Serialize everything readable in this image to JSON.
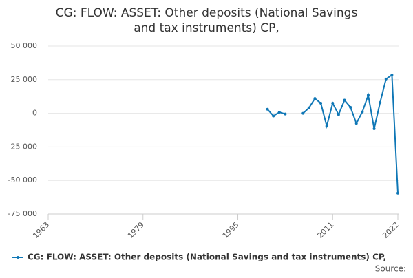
{
  "chart_data": {
    "type": "line",
    "title": "CG: FLOW: ASSET: Other deposits (National Savings and tax instruments) CP,",
    "x": [
      2000,
      2001,
      2002,
      2003,
      2004,
      2005,
      2006,
      2007,
      2008,
      2009,
      2010,
      2011,
      2012,
      2013,
      2014,
      2015,
      2016,
      2017,
      2018,
      2019,
      2020,
      2021,
      2022
    ],
    "series": [
      {
        "name": "CG: FLOW: ASSET: Other deposits (National Savings and tax instruments) CP,",
        "color": "#0f77b6",
        "values": [
          3000,
          -2000,
          800,
          -500,
          null,
          null,
          0,
          4000,
          11000,
          7500,
          -9500,
          7500,
          -1000,
          9800,
          4500,
          -7500,
          1000,
          13500,
          -11500,
          8000,
          25500,
          28500,
          -59500
        ]
      }
    ],
    "xlim": [
      1963,
      2022
    ],
    "xticks": [
      1963,
      1979,
      1995,
      2011,
      2022
    ],
    "ylim": [
      -75000,
      50000
    ],
    "yticks": [
      {
        "value": -75000,
        "label": "-75 000"
      },
      {
        "value": -50000,
        "label": "-50 000"
      },
      {
        "value": -25000,
        "label": "-25 000"
      },
      0,
      {
        "value": 25000,
        "label": "25 000"
      },
      {
        "value": 50000,
        "label": "50 000"
      }
    ],
    "grid": true,
    "legend": "bottom",
    "source": "Source:"
  }
}
